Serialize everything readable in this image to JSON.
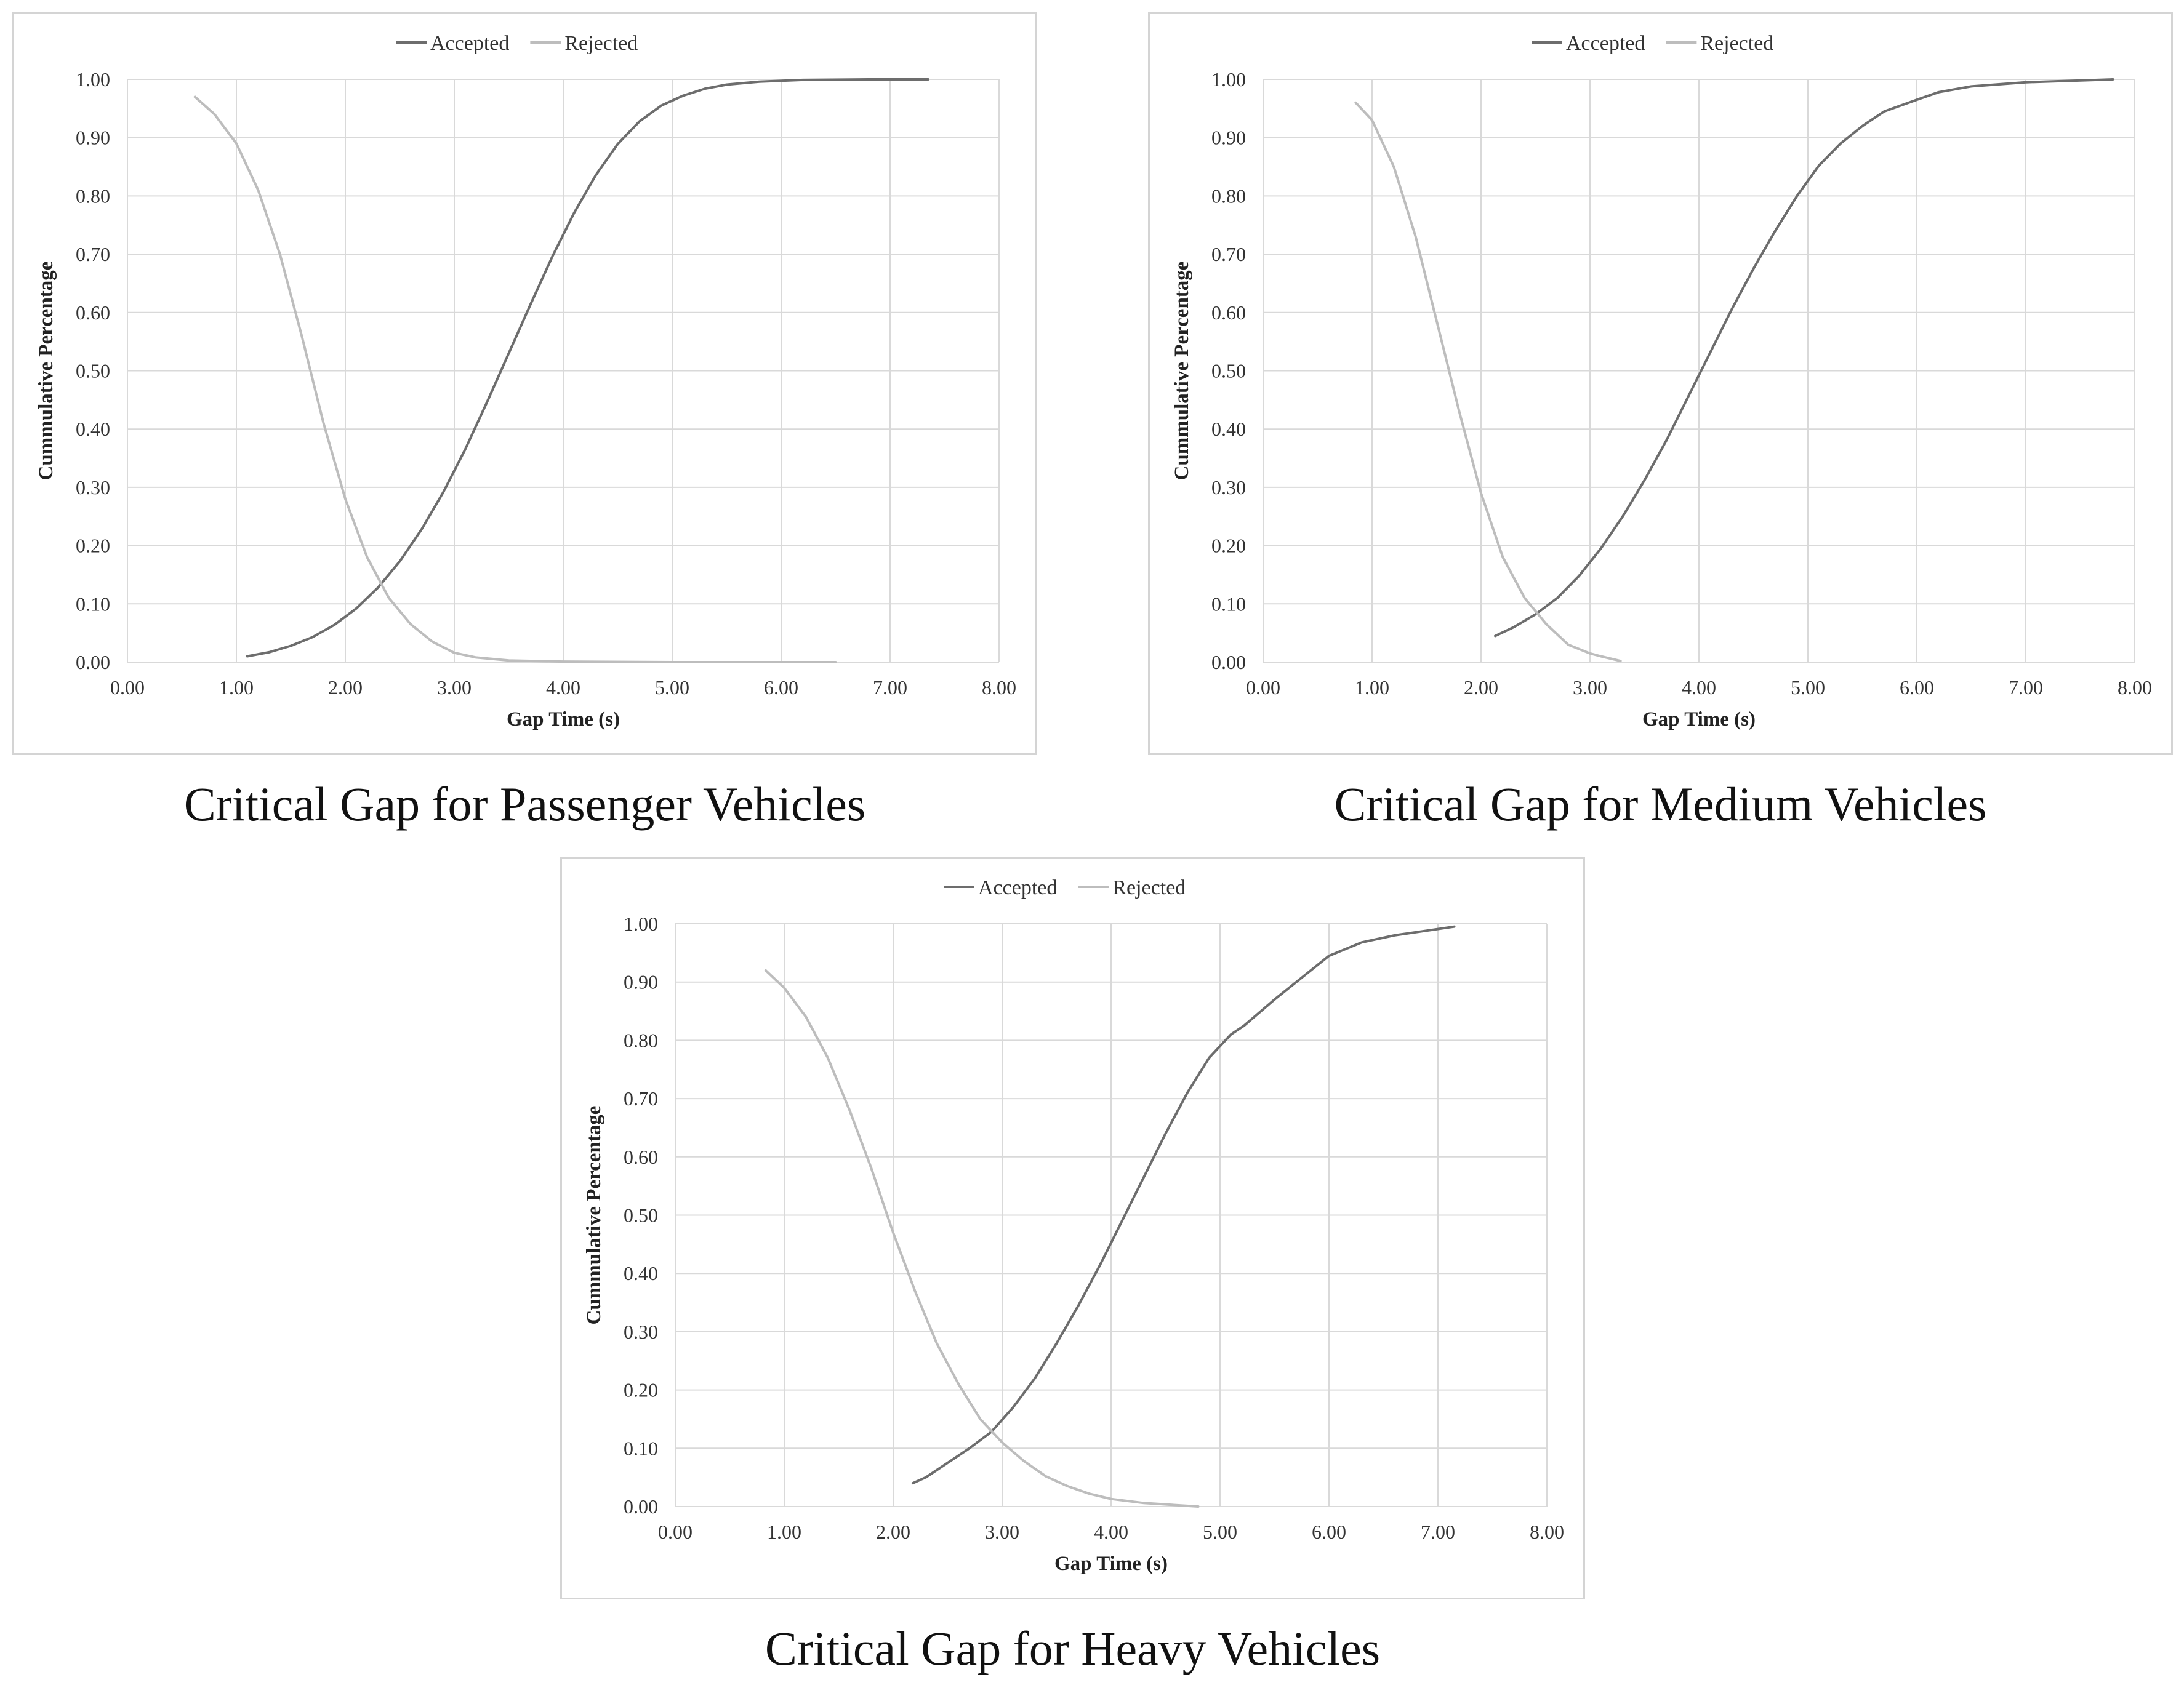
{
  "chart_data": [
    {
      "id": "passenger",
      "type": "line",
      "caption": "Critical Gap for Passenger Vehicles",
      "title": "",
      "xlabel": "Gap Time (s)",
      "ylabel": "Cummulative Percentage",
      "xlim": [
        0,
        8
      ],
      "ylim": [
        0,
        1
      ],
      "x_ticks": [
        "0.00",
        "1.00",
        "2.00",
        "3.00",
        "4.00",
        "5.00",
        "6.00",
        "7.00",
        "8.00"
      ],
      "y_ticks": [
        "0.00",
        "0.10",
        "0.20",
        "0.30",
        "0.40",
        "0.50",
        "0.60",
        "0.70",
        "0.80",
        "0.90",
        "1.00"
      ],
      "grid": true,
      "legend_position": "top-center",
      "series": [
        {
          "name": "Accepted",
          "color": "#6d6d6d",
          "points": [
            [
              1.1,
              0.01
            ],
            [
              1.3,
              0.017
            ],
            [
              1.5,
              0.028
            ],
            [
              1.7,
              0.043
            ],
            [
              1.9,
              0.064
            ],
            [
              2.1,
              0.092
            ],
            [
              2.3,
              0.128
            ],
            [
              2.5,
              0.173
            ],
            [
              2.7,
              0.228
            ],
            [
              2.9,
              0.292
            ],
            [
              3.1,
              0.365
            ],
            [
              3.3,
              0.446
            ],
            [
              3.5,
              0.53
            ],
            [
              3.7,
              0.614
            ],
            [
              3.9,
              0.696
            ],
            [
              4.1,
              0.771
            ],
            [
              4.3,
              0.836
            ],
            [
              4.5,
              0.889
            ],
            [
              4.7,
              0.928
            ],
            [
              4.9,
              0.955
            ],
            [
              5.1,
              0.972
            ],
            [
              5.3,
              0.984
            ],
            [
              5.5,
              0.991
            ],
            [
              5.8,
              0.996
            ],
            [
              6.2,
              0.999
            ],
            [
              6.8,
              1.0
            ],
            [
              7.35,
              1.0
            ]
          ]
        },
        {
          "name": "Rejected",
          "color": "#bdbdbd",
          "points": [
            [
              0.62,
              0.97
            ],
            [
              0.8,
              0.94
            ],
            [
              1.0,
              0.89
            ],
            [
              1.2,
              0.81
            ],
            [
              1.4,
              0.7
            ],
            [
              1.6,
              0.56
            ],
            [
              1.8,
              0.41
            ],
            [
              2.0,
              0.28
            ],
            [
              2.2,
              0.18
            ],
            [
              2.4,
              0.11
            ],
            [
              2.6,
              0.065
            ],
            [
              2.8,
              0.035
            ],
            [
              3.0,
              0.016
            ],
            [
              3.2,
              0.008
            ],
            [
              3.5,
              0.003
            ],
            [
              4.0,
              0.001
            ],
            [
              5.0,
              0.0
            ],
            [
              6.5,
              0.0
            ]
          ]
        }
      ]
    },
    {
      "id": "medium",
      "type": "line",
      "caption": "Critical Gap for Medium Vehicles",
      "title": "",
      "xlabel": "Gap Time (s)",
      "ylabel": "Cummulative Percentage",
      "xlim": [
        0,
        8
      ],
      "ylim": [
        0,
        1
      ],
      "x_ticks": [
        "0.00",
        "1.00",
        "2.00",
        "3.00",
        "4.00",
        "5.00",
        "6.00",
        "7.00",
        "8.00"
      ],
      "y_ticks": [
        "0.00",
        "0.10",
        "0.20",
        "0.30",
        "0.40",
        "0.50",
        "0.60",
        "0.70",
        "0.80",
        "0.90",
        "1.00"
      ],
      "grid": true,
      "legend_position": "top-center",
      "series": [
        {
          "name": "Accepted",
          "color": "#6d6d6d",
          "points": [
            [
              2.13,
              0.045
            ],
            [
              2.3,
              0.06
            ],
            [
              2.5,
              0.082
            ],
            [
              2.7,
              0.11
            ],
            [
              2.9,
              0.148
            ],
            [
              3.1,
              0.195
            ],
            [
              3.3,
              0.25
            ],
            [
              3.5,
              0.312
            ],
            [
              3.7,
              0.38
            ],
            [
              3.9,
              0.455
            ],
            [
              4.1,
              0.53
            ],
            [
              4.3,
              0.605
            ],
            [
              4.5,
              0.675
            ],
            [
              4.7,
              0.74
            ],
            [
              4.9,
              0.8
            ],
            [
              5.1,
              0.852
            ],
            [
              5.3,
              0.89
            ],
            [
              5.5,
              0.92
            ],
            [
              5.7,
              0.945
            ],
            [
              6.0,
              0.965
            ],
            [
              6.2,
              0.978
            ],
            [
              6.5,
              0.988
            ],
            [
              7.0,
              0.995
            ],
            [
              7.8,
              1.0
            ]
          ]
        },
        {
          "name": "Rejected",
          "color": "#bdbdbd",
          "points": [
            [
              0.85,
              0.96
            ],
            [
              1.0,
              0.93
            ],
            [
              1.2,
              0.85
            ],
            [
              1.4,
              0.73
            ],
            [
              1.6,
              0.58
            ],
            [
              1.8,
              0.43
            ],
            [
              2.0,
              0.29
            ],
            [
              2.2,
              0.18
            ],
            [
              2.4,
              0.11
            ],
            [
              2.6,
              0.065
            ],
            [
              2.8,
              0.03
            ],
            [
              3.0,
              0.015
            ],
            [
              3.1,
              0.01
            ],
            [
              3.28,
              0.002
            ]
          ]
        }
      ]
    },
    {
      "id": "heavy",
      "type": "line",
      "caption": "Critical Gap for Heavy Vehicles",
      "title": "",
      "xlabel": "Gap Time (s)",
      "ylabel": "Cummulative Percentage",
      "xlim": [
        0,
        8
      ],
      "ylim": [
        0,
        1
      ],
      "x_ticks": [
        "0.00",
        "1.00",
        "2.00",
        "3.00",
        "4.00",
        "5.00",
        "6.00",
        "7.00",
        "8.00"
      ],
      "y_ticks": [
        "0.00",
        "0.10",
        "0.20",
        "0.30",
        "0.40",
        "0.50",
        "0.60",
        "0.70",
        "0.80",
        "0.90",
        "1.00"
      ],
      "grid": true,
      "legend_position": "top-center",
      "series": [
        {
          "name": "Accepted",
          "color": "#6d6d6d",
          "points": [
            [
              2.18,
              0.04
            ],
            [
              2.3,
              0.05
            ],
            [
              2.5,
              0.075
            ],
            [
              2.7,
              0.1
            ],
            [
              2.9,
              0.128
            ],
            [
              3.1,
              0.17
            ],
            [
              3.3,
              0.22
            ],
            [
              3.5,
              0.28
            ],
            [
              3.7,
              0.345
            ],
            [
              3.9,
              0.415
            ],
            [
              4.1,
              0.49
            ],
            [
              4.3,
              0.565
            ],
            [
              4.5,
              0.64
            ],
            [
              4.7,
              0.71
            ],
            [
              4.9,
              0.77
            ],
            [
              5.1,
              0.81
            ],
            [
              5.22,
              0.825
            ],
            [
              5.5,
              0.87
            ],
            [
              5.8,
              0.915
            ],
            [
              6.0,
              0.945
            ],
            [
              6.3,
              0.968
            ],
            [
              6.6,
              0.98
            ],
            [
              7.15,
              0.995
            ]
          ]
        },
        {
          "name": "Rejected",
          "color": "#bdbdbd",
          "points": [
            [
              0.83,
              0.92
            ],
            [
              1.0,
              0.89
            ],
            [
              1.2,
              0.84
            ],
            [
              1.4,
              0.77
            ],
            [
              1.6,
              0.68
            ],
            [
              1.8,
              0.58
            ],
            [
              2.0,
              0.47
            ],
            [
              2.2,
              0.37
            ],
            [
              2.4,
              0.28
            ],
            [
              2.6,
              0.21
            ],
            [
              2.8,
              0.15
            ],
            [
              3.0,
              0.11
            ],
            [
              3.2,
              0.078
            ],
            [
              3.4,
              0.052
            ],
            [
              3.6,
              0.035
            ],
            [
              3.8,
              0.022
            ],
            [
              4.0,
              0.013
            ],
            [
              4.3,
              0.006
            ],
            [
              4.8,
              0.0
            ]
          ]
        }
      ]
    }
  ]
}
